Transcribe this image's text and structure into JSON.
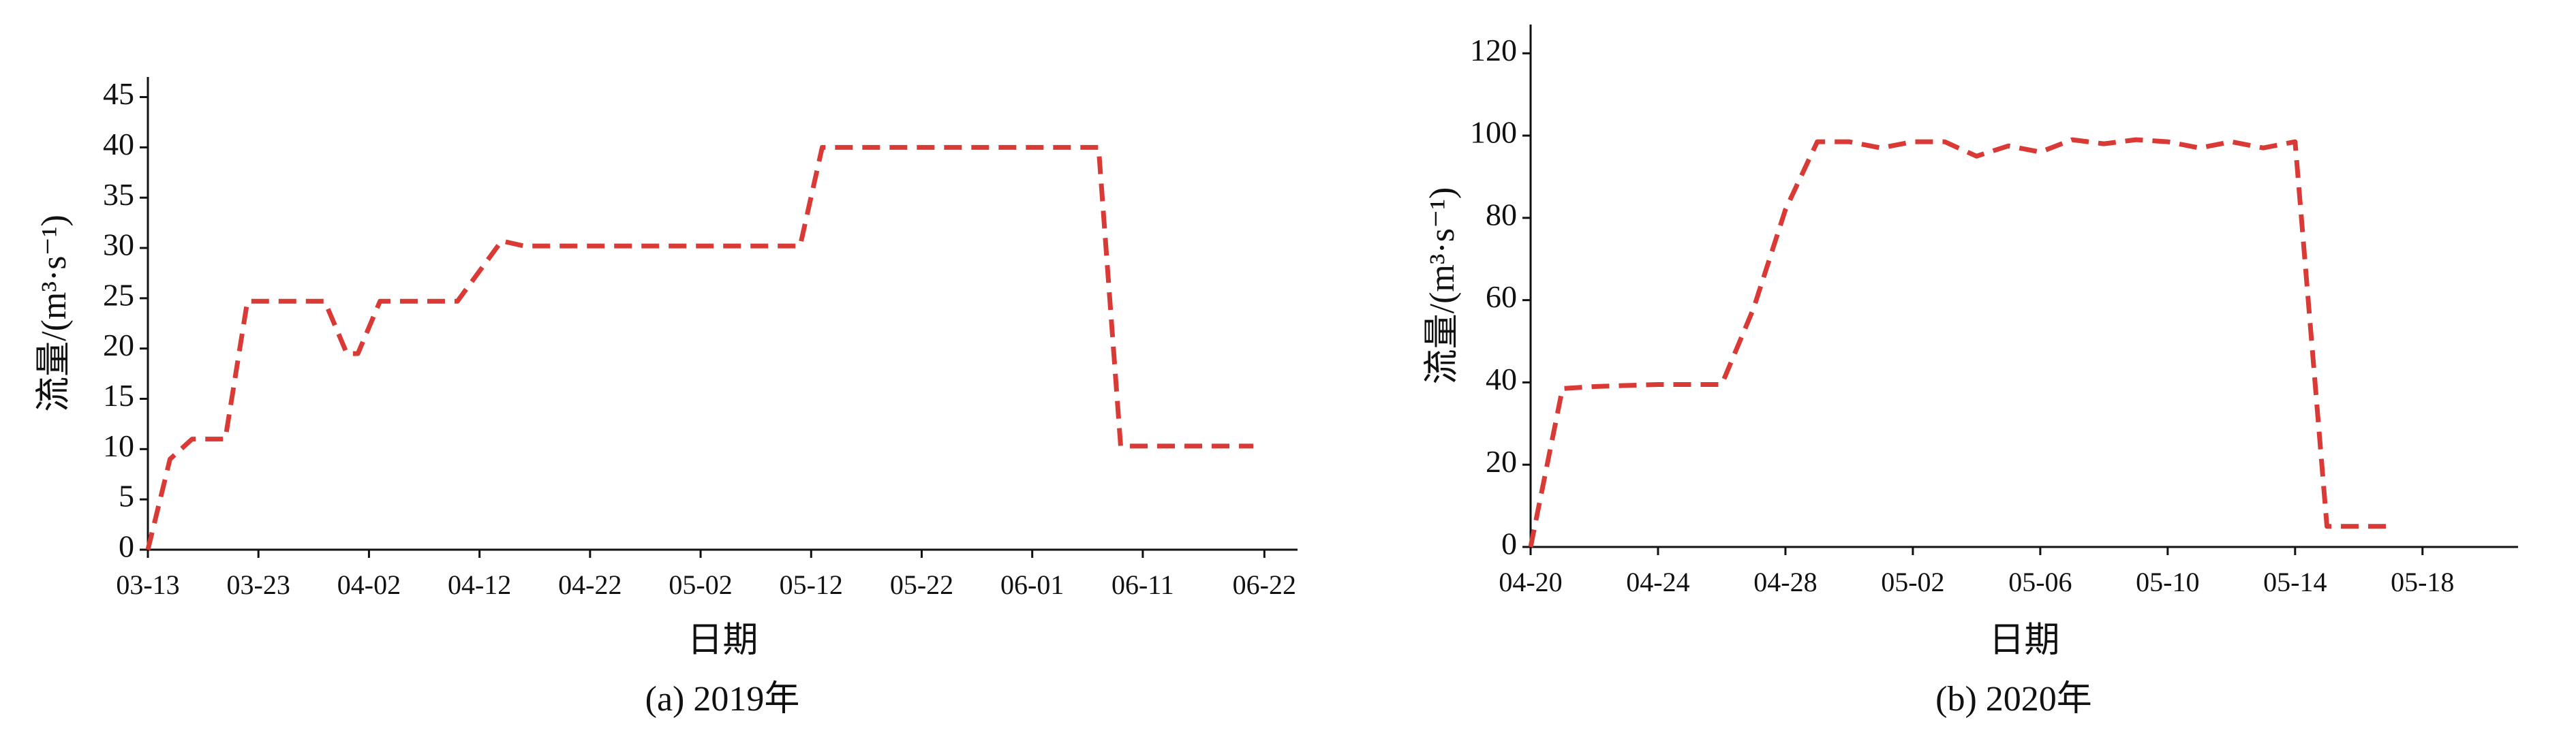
{
  "chart_data": [
    {
      "type": "line",
      "caption": "(a) 2019年",
      "xlabel": "日期",
      "ylabel": "流量/(m³·s⁻¹)",
      "x": [
        "03-13",
        "03-15",
        "03-17",
        "03-20",
        "03-22",
        "03-29",
        "03-31",
        "04-01",
        "04-03",
        "04-10",
        "04-14",
        "04-16",
        "05-11",
        "05-13",
        "06-07",
        "06-09",
        "06-21"
      ],
      "series": [
        {
          "color": "#d93a35",
          "linestyle": "dashed",
          "values": [
            0,
            9,
            11,
            11,
            24.7,
            24.7,
            19.5,
            19.5,
            24.7,
            24.7,
            30.7,
            30.2,
            30.2,
            40,
            40,
            10.3,
            10.3
          ]
        }
      ],
      "xlim": [
        "03-13",
        "06-25"
      ],
      "xticks": [
        "03-13",
        "03-23",
        "04-02",
        "04-12",
        "04-22",
        "05-02",
        "05-12",
        "05-22",
        "06-01",
        "06-11",
        "06-22"
      ],
      "ylim": [
        0,
        47
      ],
      "yticks": [
        0,
        5,
        10,
        15,
        20,
        25,
        30,
        35,
        40,
        45
      ]
    },
    {
      "type": "line",
      "caption": "(b) 2020年",
      "xlabel": "日期",
      "ylabel": "流量/(m³·s⁻¹)",
      "x": [
        "04-20",
        "04-21",
        "04-22",
        "04-24",
        "04-26",
        "04-27",
        "04-28",
        "04-29",
        "04-30",
        "05-01",
        "05-02",
        "05-03",
        "05-04",
        "05-05",
        "05-06",
        "05-07",
        "05-08",
        "05-09",
        "05-10",
        "05-11",
        "05-12",
        "05-13",
        "05-14",
        "05-15",
        "05-17"
      ],
      "series": [
        {
          "color": "#d93a35",
          "linestyle": "dashed",
          "values": [
            0,
            38.5,
            39,
            39.5,
            39.5,
            58,
            82,
            98.5,
            98.5,
            97,
            98.5,
            98.5,
            95,
            97.5,
            96,
            99,
            98,
            99,
            98.5,
            97,
            98.5,
            97,
            98.5,
            5,
            5
          ]
        }
      ],
      "xlim": [
        "04-20",
        "05-21"
      ],
      "xticks": [
        "04-20",
        "04-24",
        "04-28",
        "05-02",
        "05-06",
        "05-10",
        "05-14",
        "05-18"
      ],
      "ylim": [
        0,
        127
      ],
      "yticks": [
        0,
        20,
        40,
        60,
        80,
        100,
        120
      ]
    }
  ]
}
